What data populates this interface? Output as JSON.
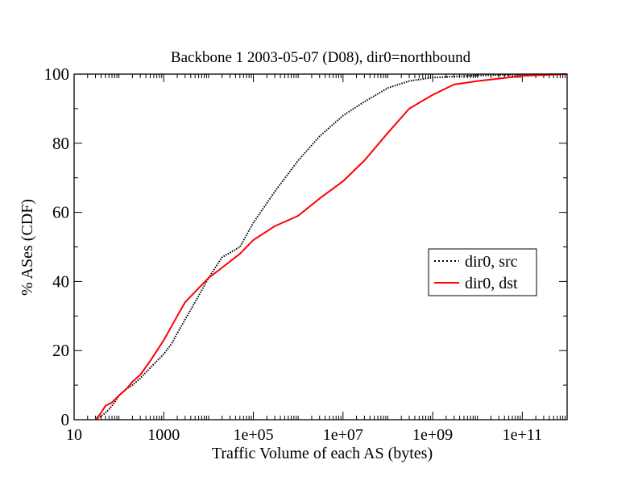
{
  "chart_data": {
    "type": "line",
    "title": "Backbone 1 2003-05-07 (D08), dir0=northbound",
    "xlabel": "Traffic Volume of each AS (bytes)",
    "ylabel": "% ASes (CDF)",
    "x_scale": "log",
    "xlim": [
      10,
      1000000000000.0
    ],
    "ylim": [
      0,
      100
    ],
    "x_ticks": [
      10,
      1000,
      100000,
      10000000,
      1000000000,
      100000000000
    ],
    "x_tick_labels": [
      "10",
      "1000",
      "1e+05",
      "1e+07",
      "1e+09",
      "1e+11"
    ],
    "y_ticks": [
      0,
      20,
      40,
      60,
      80,
      100
    ],
    "y_tick_labels": [
      "0",
      "20",
      "40",
      "60",
      "80",
      "100"
    ],
    "grid": false,
    "legend_position": "right",
    "series": [
      {
        "name": "dir0, src",
        "color": "#000000",
        "style": "dotted",
        "points": [
          [
            30,
            0
          ],
          [
            40,
            1
          ],
          [
            50,
            2
          ],
          [
            60,
            3
          ],
          [
            80,
            5
          ],
          [
            100,
            7
          ],
          [
            150,
            9
          ],
          [
            200,
            10
          ],
          [
            300,
            12
          ],
          [
            500,
            15
          ],
          [
            1000,
            19
          ],
          [
            1500,
            22
          ],
          [
            2000,
            25
          ],
          [
            3000,
            29
          ],
          [
            5000,
            34
          ],
          [
            10000,
            41
          ],
          [
            20000,
            47
          ],
          [
            50000,
            50
          ],
          [
            100000,
            57
          ],
          [
            300000,
            66
          ],
          [
            1000000,
            75
          ],
          [
            3000000,
            82
          ],
          [
            10000000,
            88
          ],
          [
            30000000,
            92
          ],
          [
            100000000,
            96
          ],
          [
            300000000,
            98
          ],
          [
            1000000000,
            99
          ],
          [
            10000000000,
            99.6
          ],
          [
            100000000000,
            99.9
          ],
          [
            1000000000000,
            100
          ]
        ]
      },
      {
        "name": "dir0, dst",
        "color": "#ff0000",
        "style": "solid",
        "points": [
          [
            30,
            0
          ],
          [
            40,
            2
          ],
          [
            50,
            4
          ],
          [
            70,
            5
          ],
          [
            100,
            7
          ],
          [
            150,
            9
          ],
          [
            200,
            11
          ],
          [
            300,
            13
          ],
          [
            500,
            17
          ],
          [
            1000,
            23
          ],
          [
            2000,
            30
          ],
          [
            3000,
            34
          ],
          [
            5000,
            37
          ],
          [
            10000,
            41
          ],
          [
            20000,
            44
          ],
          [
            50000,
            48
          ],
          [
            100000,
            52
          ],
          [
            300000,
            56
          ],
          [
            1000000,
            59
          ],
          [
            3000000,
            64
          ],
          [
            10000000,
            69
          ],
          [
            30000000,
            75
          ],
          [
            100000000,
            83
          ],
          [
            300000000,
            90
          ],
          [
            1000000000,
            94
          ],
          [
            3000000000,
            97
          ],
          [
            10000000000,
            98
          ],
          [
            100000000000,
            99.5
          ],
          [
            1000000000000,
            100
          ]
        ]
      }
    ]
  }
}
